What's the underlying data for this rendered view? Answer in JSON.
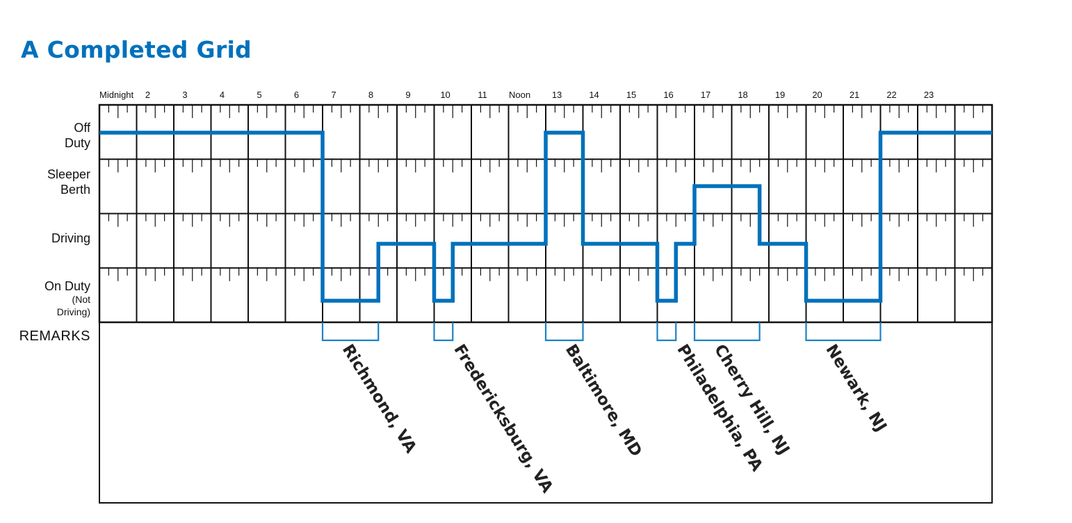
{
  "title": "A Completed Grid",
  "colors": {
    "accent": "#0071bc",
    "grid": "#111111",
    "duty_line": "#0071bc",
    "bracket": "#1a82c8"
  },
  "hour_labels": [
    "Midnight",
    "2",
    "3",
    "4",
    "5",
    "6",
    "7",
    "8",
    "9",
    "10",
    "11",
    "Noon",
    "13",
    "14",
    "15",
    "16",
    "17",
    "18",
    "19",
    "20",
    "21",
    "22",
    "23"
  ],
  "rows": [
    {
      "lines": [
        "Off",
        "Duty"
      ]
    },
    {
      "lines": [
        "Sleeper",
        "Berth"
      ]
    },
    {
      "lines": [
        "Driving"
      ]
    },
    {
      "lines": [
        "On Duty",
        "(Not",
        "Driving)"
      ]
    }
  ],
  "remarks_label": "REMARKS",
  "duty_status_log": [
    {
      "status": "off_duty",
      "from": 0,
      "to": 6
    },
    {
      "status": "on_duty",
      "from": 6,
      "to": 7.5
    },
    {
      "status": "driving",
      "from": 7.5,
      "to": 9
    },
    {
      "status": "on_duty",
      "from": 9,
      "to": 9.5
    },
    {
      "status": "driving",
      "from": 9.5,
      "to": 12
    },
    {
      "status": "off_duty",
      "from": 12,
      "to": 13
    },
    {
      "status": "driving",
      "from": 13,
      "to": 15
    },
    {
      "status": "on_duty",
      "from": 15,
      "to": 15.5
    },
    {
      "status": "driving",
      "from": 15.5,
      "to": 16
    },
    {
      "status": "sleeper",
      "from": 16,
      "to": 17.75
    },
    {
      "status": "driving",
      "from": 17.75,
      "to": 19
    },
    {
      "status": "on_duty",
      "from": 19,
      "to": 21
    },
    {
      "status": "off_duty",
      "from": 21,
      "to": 24
    }
  ],
  "remarks": [
    {
      "location": "Richmond, VA",
      "from": 6,
      "to": 7.5
    },
    {
      "location": "Fredericksburg, VA",
      "from": 9,
      "to": 9.5
    },
    {
      "location": "Baltimore, MD",
      "from": 12,
      "to": 13
    },
    {
      "location": "Philadelphia, PA",
      "from": 15,
      "to": 15.5
    },
    {
      "location": "Cherry Hill, NJ",
      "from": 16,
      "to": 17.75
    },
    {
      "location": "Newark, NJ",
      "from": 19,
      "to": 21
    }
  ]
}
